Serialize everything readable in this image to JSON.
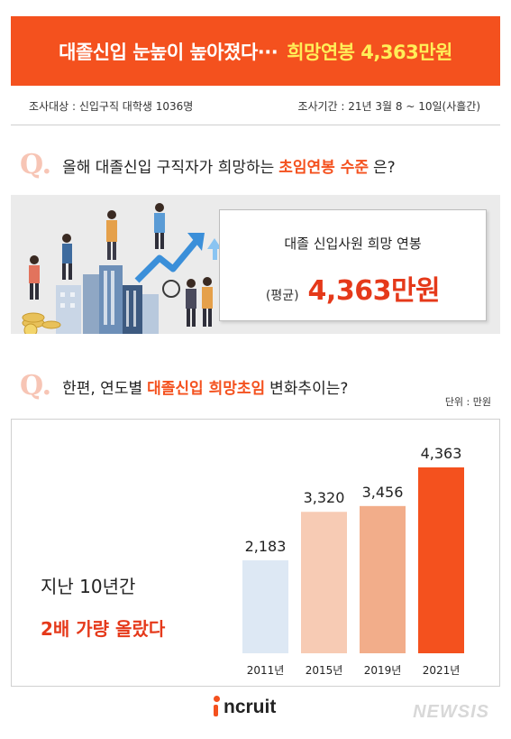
{
  "banner": {
    "title": "대졸신입 눈높이 높아졌다···",
    "highlight": "희망연봉 4,363만원"
  },
  "survey": {
    "target": "조사대상 : 신입구직 대학생 1036명",
    "period": "조사기간 : 21년 3월 8 ~ 10일(사흘간)"
  },
  "q1": {
    "mark": "Q.",
    "pre": "올해 대졸신입 구직자가 희망하는",
    "highlight": "초임연봉 수준",
    "post": "은?"
  },
  "salary_box": {
    "title": "대졸 신입사원 희망 연봉",
    "avg_label": "(평균)",
    "value": "4,363만원"
  },
  "q2": {
    "mark": "Q.",
    "pre": "한편, 연도별",
    "highlight": "대졸신입 희망초임",
    "post": "변화추이는?"
  },
  "unit_label": "단위 : 만원",
  "notes": {
    "line1": "지난 10년간",
    "line2": "2배 가량 올랐다"
  },
  "chart_data": {
    "type": "bar",
    "categories": [
      "2011년",
      "2015년",
      "2019년",
      "2021년"
    ],
    "values": [
      2183,
      3320,
      3456,
      4363
    ],
    "value_labels": [
      "2,183",
      "3,320",
      "3,456",
      "4,363"
    ],
    "colors": [
      "#dde8f4",
      "#f7cbb4",
      "#f2ad8a",
      "#f4511e"
    ],
    "ylim": [
      0,
      4363
    ]
  },
  "logo": {
    "text": "ncruit"
  },
  "watermark": "NEWSIS",
  "colors": {
    "accent": "#f4511e",
    "highlight_yellow": "#ffee58",
    "value_red": "#e5391a"
  }
}
